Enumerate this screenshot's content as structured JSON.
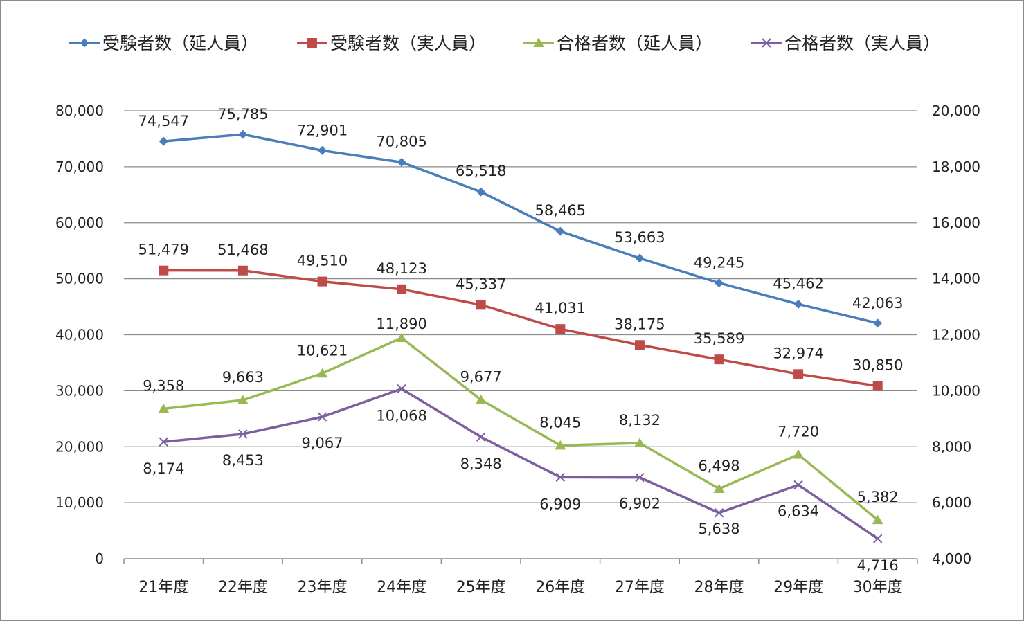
{
  "chart_data": {
    "type": "line",
    "categories": [
      "21年度",
      "22年度",
      "23年度",
      "24年度",
      "25年度",
      "26年度",
      "27年度",
      "28年度",
      "29年度",
      "30年度"
    ],
    "y_left": {
      "min": 0,
      "max": 80000,
      "step": 10000,
      "ticks": [
        "0",
        "10,000",
        "20,000",
        "30,000",
        "40,000",
        "50,000",
        "60,000",
        "70,000",
        "80,000"
      ]
    },
    "y_right": {
      "min": 4000,
      "max": 20000,
      "step": 2000,
      "ticks": [
        "4,000",
        "6,000",
        "8,000",
        "10,000",
        "12,000",
        "14,000",
        "16,000",
        "18,000",
        "20,000"
      ]
    },
    "grid": true,
    "legend_position": "top",
    "series": [
      {
        "name": "受験者数（延人員）",
        "axis": "left",
        "color": "#4a7ebb",
        "marker": "diamond",
        "values": [
          74547,
          75785,
          72901,
          70805,
          65518,
          58465,
          53663,
          49245,
          45462,
          42063
        ],
        "labels": [
          "74,547",
          "75,785",
          "72,901",
          "70,805",
          "65,518",
          "58,465",
          "53,663",
          "49,245",
          "45,462",
          "42,063"
        ]
      },
      {
        "name": "受験者数（実人員）",
        "axis": "left",
        "color": "#be4b48",
        "marker": "square",
        "values": [
          51479,
          51468,
          49510,
          48123,
          45337,
          41031,
          38175,
          35589,
          32974,
          30850
        ],
        "labels": [
          "51,479",
          "51,468",
          "49,510",
          "48,123",
          "45,337",
          "41,031",
          "38,175",
          "35,589",
          "32,974",
          "30,850"
        ]
      },
      {
        "name": "合格者数（延人員）",
        "axis": "right",
        "color": "#98b954",
        "marker": "triangle",
        "values": [
          9358,
          9663,
          10621,
          11890,
          9677,
          8045,
          8132,
          6498,
          7720,
          5382
        ],
        "labels": [
          "9,358",
          "9,663",
          "10,621",
          "11,890",
          "9,677",
          "8,045",
          "8,132",
          "6,498",
          "7,720",
          "5,382"
        ]
      },
      {
        "name": "合格者数（実人員）",
        "axis": "right",
        "color": "#7d5fa0",
        "marker": "x",
        "values": [
          8174,
          8453,
          9067,
          10068,
          8348,
          6909,
          6902,
          5638,
          6634,
          4716
        ],
        "labels": [
          "8,174",
          "8,453",
          "9,067",
          "10,068",
          "8,348",
          "6,909",
          "6,902",
          "5,638",
          "6,634",
          "4,716"
        ]
      }
    ]
  }
}
